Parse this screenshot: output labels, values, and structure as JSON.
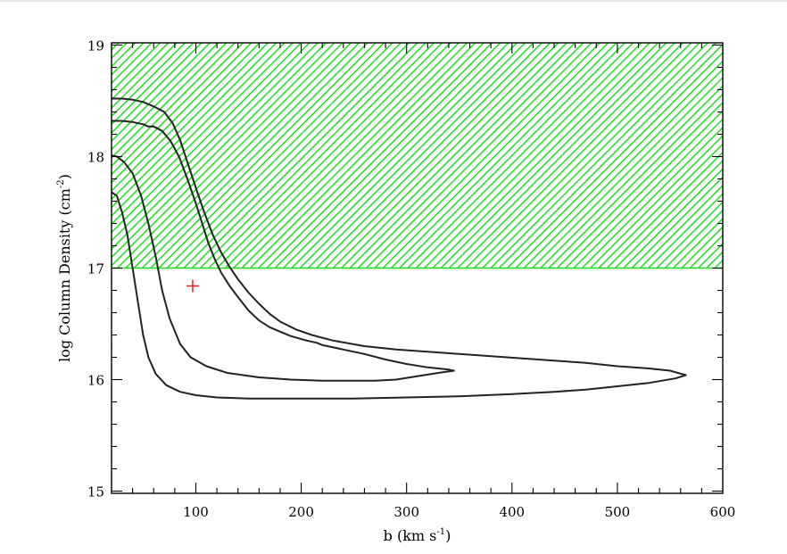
{
  "chart_data": {
    "type": "line",
    "title": "",
    "xlabel": "b (km s",
    "xlabel_sup": "-1",
    "xlabel_end": ")",
    "ylabel": "log Column Density (cm",
    "ylabel_sup": "-2",
    "ylabel_end": ")",
    "xlim": [
      20,
      600
    ],
    "ylim": [
      14.98,
      19.02
    ],
    "x_ticks": [
      100,
      200,
      300,
      400,
      500,
      600
    ],
    "y_ticks": [
      15,
      16,
      17,
      18,
      19
    ],
    "x_minor_step": 20,
    "y_minor_step": 0.2,
    "grid": false,
    "hatched_region": {
      "y_from": 17,
      "y_to": 19.02,
      "color": "#22dd22"
    },
    "marker": {
      "shape": "plus",
      "x": 97,
      "y": 16.84,
      "color": "#e02020"
    },
    "contours": [
      {
        "points": [
          [
            20,
            18.52
          ],
          [
            30,
            18.52
          ],
          [
            40,
            18.51
          ],
          [
            50,
            18.49
          ],
          [
            60,
            18.45
          ],
          [
            70,
            18.4
          ],
          [
            78,
            18.3
          ],
          [
            85,
            18.15
          ],
          [
            92,
            17.95
          ],
          [
            100,
            17.72
          ],
          [
            108,
            17.5
          ],
          [
            116,
            17.3
          ],
          [
            124,
            17.14
          ],
          [
            132,
            17.01
          ],
          [
            140,
            16.9
          ],
          [
            150,
            16.78
          ],
          [
            160,
            16.68
          ],
          [
            170,
            16.59
          ],
          [
            180,
            16.52
          ],
          [
            195,
            16.45
          ],
          [
            210,
            16.4
          ],
          [
            230,
            16.35
          ],
          [
            260,
            16.3
          ],
          [
            290,
            16.27
          ],
          [
            320,
            16.25
          ],
          [
            350,
            16.23
          ],
          [
            380,
            16.21
          ],
          [
            410,
            16.19
          ],
          [
            440,
            16.17
          ],
          [
            470,
            16.15
          ],
          [
            500,
            16.12
          ],
          [
            530,
            16.1
          ],
          [
            550,
            16.08
          ],
          [
            565,
            16.04
          ],
          [
            555,
            16.01
          ],
          [
            530,
            15.97
          ],
          [
            500,
            15.94
          ],
          [
            470,
            15.91
          ],
          [
            440,
            15.89
          ],
          [
            400,
            15.87
          ],
          [
            350,
            15.85
          ],
          [
            300,
            15.84
          ],
          [
            250,
            15.83
          ],
          [
            200,
            15.83
          ],
          [
            150,
            15.83
          ],
          [
            120,
            15.84
          ],
          [
            100,
            15.86
          ],
          [
            85,
            15.89
          ],
          [
            72,
            15.95
          ],
          [
            62,
            16.05
          ],
          [
            55,
            16.2
          ],
          [
            50,
            16.4
          ],
          [
            45,
            16.7
          ],
          [
            40,
            17.0
          ],
          [
            35,
            17.3
          ],
          [
            30,
            17.5
          ],
          [
            25,
            17.65
          ],
          [
            20,
            17.68
          ]
        ]
      },
      {
        "points": [
          [
            20,
            18.32
          ],
          [
            30,
            18.32
          ],
          [
            40,
            18.31
          ],
          [
            50,
            18.29
          ],
          [
            55,
            18.27
          ],
          [
            60,
            18.27
          ],
          [
            68,
            18.23
          ],
          [
            76,
            18.14
          ],
          [
            84,
            18.0
          ],
          [
            92,
            17.8
          ],
          [
            100,
            17.58
          ],
          [
            106,
            17.4
          ],
          [
            112,
            17.22
          ],
          [
            118,
            17.08
          ],
          [
            124,
            16.96
          ],
          [
            132,
            16.84
          ],
          [
            140,
            16.74
          ],
          [
            150,
            16.62
          ],
          [
            160,
            16.53
          ],
          [
            170,
            16.47
          ],
          [
            180,
            16.43
          ],
          [
            190,
            16.39
          ],
          [
            205,
            16.35
          ],
          [
            215,
            16.33
          ],
          [
            220,
            16.31
          ],
          [
            225,
            16.3
          ],
          [
            240,
            16.27
          ],
          [
            260,
            16.23
          ],
          [
            280,
            16.18
          ],
          [
            300,
            16.14
          ],
          [
            320,
            16.11
          ],
          [
            340,
            16.09
          ],
          [
            345,
            16.08
          ],
          [
            330,
            16.06
          ],
          [
            310,
            16.03
          ],
          [
            290,
            16.0
          ],
          [
            270,
            15.99
          ],
          [
            250,
            15.99
          ],
          [
            220,
            15.99
          ],
          [
            190,
            16.0
          ],
          [
            160,
            16.02
          ],
          [
            130,
            16.06
          ],
          [
            110,
            16.12
          ],
          [
            95,
            16.2
          ],
          [
            85,
            16.32
          ],
          [
            75,
            16.55
          ],
          [
            68,
            16.8
          ],
          [
            62,
            17.1
          ],
          [
            55,
            17.4
          ],
          [
            48,
            17.65
          ],
          [
            40,
            17.85
          ],
          [
            32,
            17.95
          ],
          [
            25,
            18.0
          ],
          [
            20,
            18.01
          ]
        ]
      }
    ]
  }
}
